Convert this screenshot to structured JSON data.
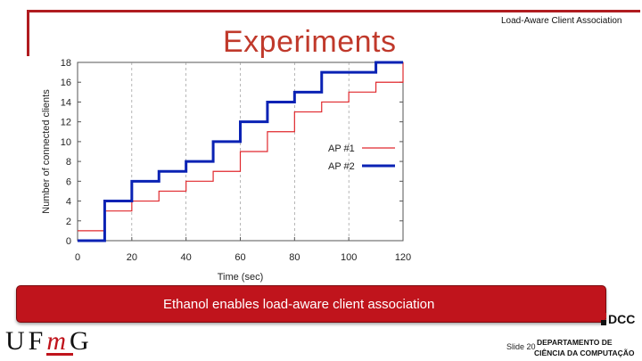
{
  "slide": {
    "header": "Load-Aware Client Association",
    "title": "Experiments",
    "banner": "Ethanol enables load-aware client association",
    "number": "Slide 20",
    "logo_left": {
      "prefix": "UF",
      "m": "m",
      "suffix": "G"
    },
    "logo_right": {
      "abbr": "DCC",
      "line1": "DEPARTAMENTO DE",
      "line2": "CIÊNCIA DA COMPUTAÇÃO"
    },
    "colors": {
      "accent": "#c0141c"
    }
  },
  "chart_data": {
    "type": "line",
    "xlabel": "Time (sec)",
    "ylabel": "Number of connected clients",
    "xlim": [
      0,
      120
    ],
    "ylim": [
      0,
      18
    ],
    "xticks": [
      0,
      20,
      40,
      60,
      80,
      100,
      120
    ],
    "yticks": [
      0,
      2,
      4,
      6,
      8,
      10,
      12,
      14,
      16,
      18
    ],
    "legend_position": "middle-right",
    "grid": "vertical dashed",
    "step": "post",
    "series": [
      {
        "name": "AP #1",
        "color": "#e0282d",
        "x": [
          0,
          10,
          20,
          30,
          40,
          50,
          60,
          70,
          80,
          90,
          100,
          110,
          120
        ],
        "y": [
          1,
          3,
          4,
          5,
          6,
          7,
          9,
          11,
          13,
          14,
          15,
          16,
          18
        ]
      },
      {
        "name": "AP #2",
        "color": "#0a22b4",
        "x": [
          0,
          10,
          20,
          30,
          40,
          50,
          60,
          70,
          80,
          90,
          100,
          110,
          120
        ],
        "y": [
          0,
          4,
          6,
          7,
          8,
          10,
          12,
          14,
          15,
          17,
          17,
          18,
          18
        ]
      }
    ]
  }
}
